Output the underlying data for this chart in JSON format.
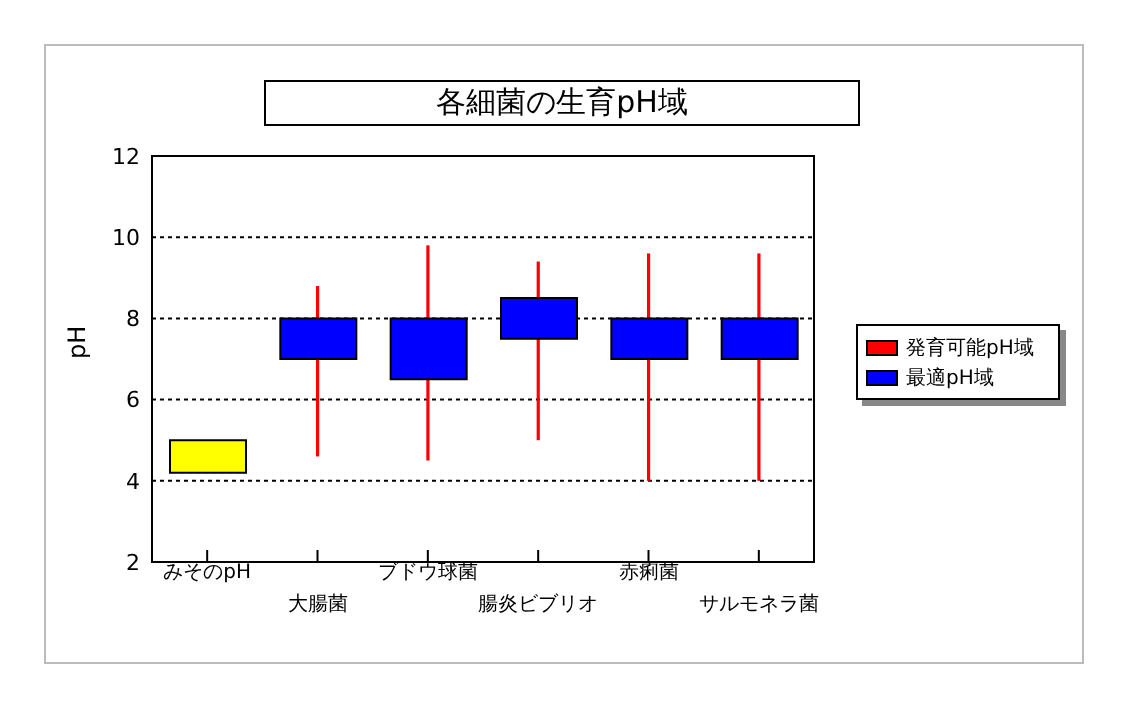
{
  "chart_data": {
    "type": "bar",
    "title": "各細菌の生育pH域",
    "ylabel": "pH",
    "categories": [
      "みそのpH",
      "大腸菌",
      "ブドウ球菌",
      "腸炎ビブリオ",
      "赤痢菌",
      "サルモネラ菌"
    ],
    "series": [
      {
        "name": "発育可能pH域",
        "type": "bar",
        "color": "#ff0000",
        "base": [
          null,
          4.6,
          4.5,
          5.0,
          4.0,
          4.0
        ],
        "values": [
          null,
          4.2,
          5.3,
          4.4,
          5.6,
          5.6
        ]
      },
      {
        "name": "最適pH域",
        "color": "#0000ff",
        "colors": [
          "#ffff00",
          "#0000ff",
          "#0000ff",
          "#0000ff",
          "#0000ff",
          "#0000ff"
        ],
        "base": [
          4.2,
          7.0,
          6.5,
          7.5,
          7.0,
          7.0
        ],
        "values": [
          0.8,
          1.0,
          1.5,
          1.0,
          1.0,
          1.0
        ]
      }
    ],
    "ylim": [
      2,
      12
    ],
    "yticks": [
      2,
      4,
      6,
      8,
      10,
      12
    ],
    "grid": "y",
    "legend": "right"
  }
}
